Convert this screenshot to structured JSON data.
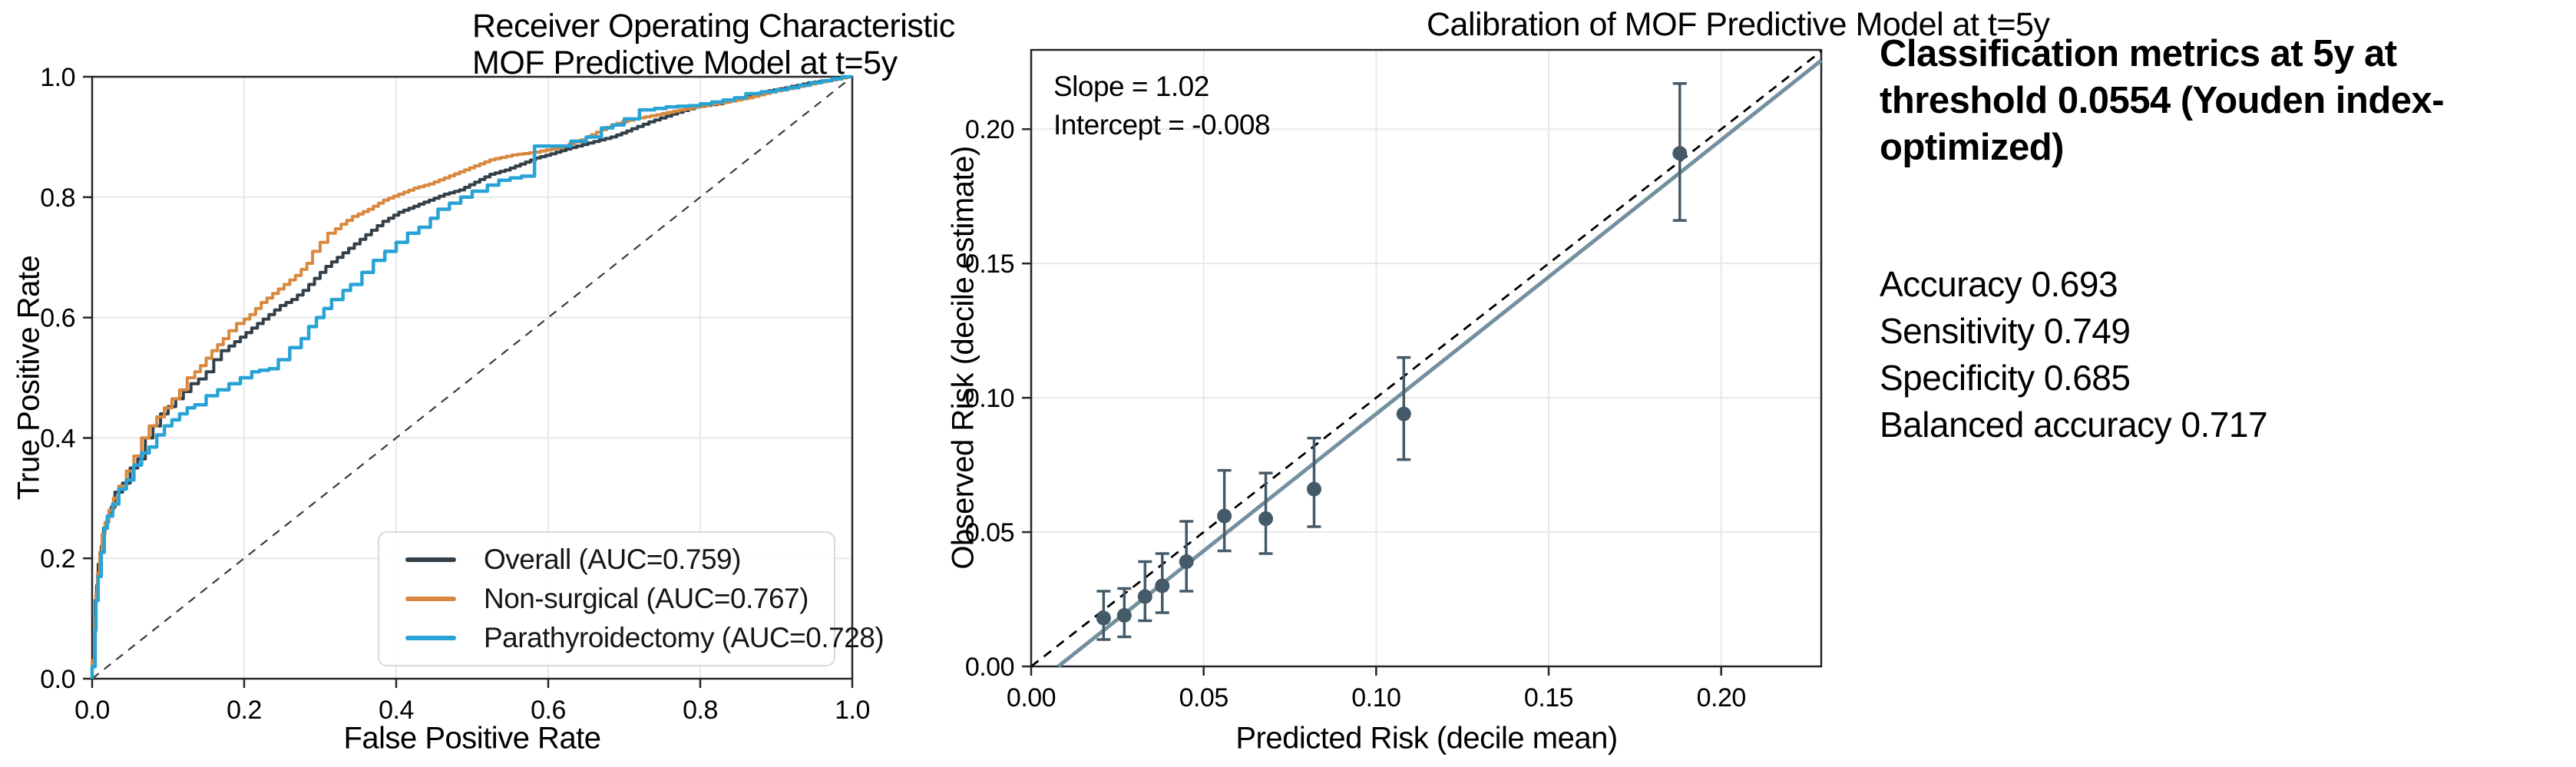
{
  "figure": {
    "background": "#ffffff"
  },
  "roc": {
    "title_line1": "Receiver Operating Characteristic",
    "title_line2": "MOF Predictive Model at t=5y",
    "xlabel": "False Positive Rate",
    "ylabel": "True Positive Rate"
  },
  "calibration": {
    "title": "Calibration of MOF Predictive Model at t=5y",
    "xlabel": "Predicted Risk (decile mean)",
    "ylabel": "Observed Risk (decile estimate)",
    "annotation": "Slope = 1.02\nIntercept = -0.008",
    "slope_label": "Slope = 1.02",
    "intercept_label": "Intercept = -0.008"
  },
  "metrics": {
    "title": "Classification metrics at 5y at\nthreshold 0.0554 (Youden index-\noptimized)",
    "lines": [
      "Accuracy 0.693",
      "Sensitivity 0.749",
      "Specificity 0.685",
      "Balanced accuracy 0.717"
    ]
  },
  "chart_data": [
    {
      "type": "line",
      "name": "roc",
      "title": "Receiver Operating Characteristic MOF Predictive Model at t=5y",
      "xlabel": "False Positive Rate",
      "ylabel": "True Positive Rate",
      "xlim": [
        0,
        1
      ],
      "ylim": [
        0,
        1
      ],
      "xticks": [
        "0.0",
        "0.2",
        "0.4",
        "0.6",
        "0.8",
        "1.0"
      ],
      "yticks": [
        "0.0",
        "0.2",
        "0.4",
        "0.6",
        "0.8",
        "1.0"
      ],
      "grid": true,
      "diagonal_reference": true,
      "legend_position": "lower right",
      "colors": {
        "grid": "#e8e8e8",
        "spine": "#262626",
        "diagonal": "#3c3c3c"
      },
      "series": [
        {
          "name": "overall",
          "label": "Overall (AUC=0.759)",
          "auc": 0.759,
          "color": "#334049",
          "width": 4,
          "step": 0.007,
          "points": [
            [
              0,
              0
            ],
            [
              0.003,
              0.02
            ],
            [
              0.004,
              0.09
            ],
            [
              0.006,
              0.13
            ],
            [
              0.008,
              0.155
            ],
            [
              0.012,
              0.19
            ],
            [
              0.015,
              0.22
            ],
            [
              0.02,
              0.25
            ],
            [
              0.025,
              0.27
            ],
            [
              0.03,
              0.285
            ],
            [
              0.04,
              0.31
            ],
            [
              0.05,
              0.325
            ],
            [
              0.06,
              0.35
            ],
            [
              0.07,
              0.365
            ],
            [
              0.08,
              0.4
            ],
            [
              0.09,
              0.42
            ],
            [
              0.1,
              0.44
            ],
            [
              0.11,
              0.452
            ],
            [
              0.12,
              0.465
            ],
            [
              0.13,
              0.477
            ],
            [
              0.14,
              0.49
            ],
            [
              0.15,
              0.498
            ],
            [
              0.16,
              0.51
            ],
            [
              0.17,
              0.53
            ],
            [
              0.18,
              0.545
            ],
            [
              0.195,
              0.56
            ],
            [
              0.21,
              0.575
            ],
            [
              0.225,
              0.59
            ],
            [
              0.24,
              0.605
            ],
            [
              0.255,
              0.62
            ],
            [
              0.27,
              0.63
            ],
            [
              0.285,
              0.645
            ],
            [
              0.3,
              0.665
            ],
            [
              0.315,
              0.685
            ],
            [
              0.33,
              0.7
            ],
            [
              0.345,
              0.715
            ],
            [
              0.36,
              0.73
            ],
            [
              0.375,
              0.745
            ],
            [
              0.39,
              0.76
            ],
            [
              0.41,
              0.775
            ],
            [
              0.43,
              0.785
            ],
            [
              0.45,
              0.795
            ],
            [
              0.47,
              0.805
            ],
            [
              0.49,
              0.812
            ],
            [
              0.51,
              0.825
            ],
            [
              0.53,
              0.838
            ],
            [
              0.55,
              0.845
            ],
            [
              0.57,
              0.855
            ],
            [
              0.59,
              0.865
            ],
            [
              0.61,
              0.872
            ],
            [
              0.63,
              0.88
            ],
            [
              0.66,
              0.89
            ],
            [
              0.69,
              0.9
            ],
            [
              0.71,
              0.91
            ],
            [
              0.74,
              0.925
            ],
            [
              0.77,
              0.938
            ],
            [
              0.8,
              0.95
            ],
            [
              0.83,
              0.955
            ],
            [
              0.86,
              0.965
            ],
            [
              0.89,
              0.975
            ],
            [
              0.92,
              0.982
            ],
            [
              0.95,
              0.99
            ],
            [
              0.98,
              0.995
            ],
            [
              1,
              1
            ]
          ]
        },
        {
          "name": "non_surgical",
          "label": "Non-surgical (AUC=0.767)",
          "auc": 0.767,
          "color": "#d8893f",
          "width": 4,
          "step": 0.007,
          "points": [
            [
              0,
              0
            ],
            [
              0.003,
              0.03
            ],
            [
              0.005,
              0.1
            ],
            [
              0.007,
              0.14
            ],
            [
              0.01,
              0.175
            ],
            [
              0.013,
              0.21
            ],
            [
              0.017,
              0.24
            ],
            [
              0.022,
              0.26
            ],
            [
              0.028,
              0.28
            ],
            [
              0.035,
              0.3
            ],
            [
              0.045,
              0.32
            ],
            [
              0.055,
              0.345
            ],
            [
              0.065,
              0.37
            ],
            [
              0.075,
              0.4
            ],
            [
              0.085,
              0.42
            ],
            [
              0.095,
              0.435
            ],
            [
              0.105,
              0.45
            ],
            [
              0.115,
              0.465
            ],
            [
              0.125,
              0.48
            ],
            [
              0.135,
              0.5
            ],
            [
              0.15,
              0.52
            ],
            [
              0.165,
              0.545
            ],
            [
              0.18,
              0.565
            ],
            [
              0.19,
              0.578
            ],
            [
              0.2,
              0.59
            ],
            [
              0.215,
              0.605
            ],
            [
              0.23,
              0.625
            ],
            [
              0.245,
              0.64
            ],
            [
              0.26,
              0.655
            ],
            [
              0.275,
              0.67
            ],
            [
              0.29,
              0.69
            ],
            [
              0.3,
              0.71
            ],
            [
              0.31,
              0.725
            ],
            [
              0.32,
              0.74
            ],
            [
              0.335,
              0.755
            ],
            [
              0.35,
              0.768
            ],
            [
              0.37,
              0.78
            ],
            [
              0.39,
              0.795
            ],
            [
              0.41,
              0.805
            ],
            [
              0.43,
              0.815
            ],
            [
              0.45,
              0.822
            ],
            [
              0.47,
              0.832
            ],
            [
              0.49,
              0.842
            ],
            [
              0.51,
              0.852
            ],
            [
              0.53,
              0.862
            ],
            [
              0.56,
              0.87
            ],
            [
              0.59,
              0.875
            ],
            [
              0.62,
              0.882
            ],
            [
              0.65,
              0.895
            ],
            [
              0.67,
              0.908
            ],
            [
              0.69,
              0.92
            ],
            [
              0.72,
              0.93
            ],
            [
              0.75,
              0.937
            ],
            [
              0.78,
              0.945
            ],
            [
              0.81,
              0.952
            ],
            [
              0.84,
              0.958
            ],
            [
              0.87,
              0.965
            ],
            [
              0.9,
              0.975
            ],
            [
              0.93,
              0.982
            ],
            [
              0.96,
              0.99
            ],
            [
              1,
              1
            ]
          ]
        },
        {
          "name": "parathyroidectomy",
          "label": "Parathyroidectomy (AUC=0.728)",
          "auc": 0.728,
          "color": "#29a3d6",
          "width": 4.5,
          "step": 0.014,
          "points": [
            [
              0,
              0
            ],
            [
              0.004,
              0.02
            ],
            [
              0.005,
              0.08
            ],
            [
              0.008,
              0.13
            ],
            [
              0.012,
              0.17
            ],
            [
              0.016,
              0.21
            ],
            [
              0.02,
              0.25
            ],
            [
              0.027,
              0.27
            ],
            [
              0.035,
              0.29
            ],
            [
              0.045,
              0.315
            ],
            [
              0.055,
              0.33
            ],
            [
              0.065,
              0.355
            ],
            [
              0.075,
              0.375
            ],
            [
              0.085,
              0.385
            ],
            [
              0.095,
              0.405
            ],
            [
              0.105,
              0.42
            ],
            [
              0.115,
              0.43
            ],
            [
              0.125,
              0.44
            ],
            [
              0.135,
              0.45
            ],
            [
              0.15,
              0.455
            ],
            [
              0.165,
              0.47
            ],
            [
              0.18,
              0.48
            ],
            [
              0.195,
              0.49
            ],
            [
              0.21,
              0.5
            ],
            [
              0.22,
              0.51
            ],
            [
              0.245,
              0.515
            ],
            [
              0.26,
              0.53
            ],
            [
              0.275,
              0.55
            ],
            [
              0.285,
              0.565
            ],
            [
              0.295,
              0.585
            ],
            [
              0.305,
              0.6
            ],
            [
              0.315,
              0.615
            ],
            [
              0.33,
              0.63
            ],
            [
              0.34,
              0.645
            ],
            [
              0.355,
              0.655
            ],
            [
              0.37,
              0.675
            ],
            [
              0.385,
              0.695
            ],
            [
              0.4,
              0.71
            ],
            [
              0.415,
              0.725
            ],
            [
              0.43,
              0.74
            ],
            [
              0.445,
              0.75
            ],
            [
              0.455,
              0.765
            ],
            [
              0.47,
              0.78
            ],
            [
              0.485,
              0.79
            ],
            [
              0.5,
              0.8
            ],
            [
              0.52,
              0.81
            ],
            [
              0.535,
              0.82
            ],
            [
              0.55,
              0.828
            ],
            [
              0.565,
              0.832
            ],
            [
              0.582,
              0.835
            ],
            [
              0.585,
              0.885
            ],
            [
              0.63,
              0.885
            ],
            [
              0.65,
              0.893
            ],
            [
              0.67,
              0.9
            ],
            [
              0.685,
              0.915
            ],
            [
              0.7,
              0.92
            ],
            [
              0.72,
              0.93
            ],
            [
              0.74,
              0.945
            ],
            [
              0.77,
              0.95
            ],
            [
              0.8,
              0.952
            ],
            [
              0.83,
              0.958
            ],
            [
              0.86,
              0.965
            ],
            [
              0.88,
              0.972
            ],
            [
              0.9,
              0.975
            ],
            [
              0.93,
              0.982
            ],
            [
              0.96,
              0.99
            ],
            [
              1,
              1
            ]
          ]
        }
      ]
    },
    {
      "type": "scatter",
      "name": "calibration",
      "title": "Calibration of MOF Predictive Model at t=5y",
      "xlabel": "Predicted Risk (decile mean)",
      "ylabel": "Observed Risk (decile estimate)",
      "xlim": [
        0,
        0.229
      ],
      "ylim": [
        0,
        0.2295
      ],
      "xticks": [
        "0.00",
        "0.05",
        "0.10",
        "0.15",
        "0.20"
      ],
      "yticks": [
        "0.00",
        "0.05",
        "0.10",
        "0.15",
        "0.20"
      ],
      "grid": true,
      "identity_reference": true,
      "fit": {
        "slope": 1.02,
        "intercept": -0.008
      },
      "colors": {
        "grid": "#e8e8e8",
        "spine": "#262626",
        "identity": "#000000",
        "fit": "#73909e",
        "point": "#455a68"
      },
      "points": [
        {
          "x": 0.021,
          "y": 0.018,
          "lo": 0.01,
          "hi": 0.028
        },
        {
          "x": 0.027,
          "y": 0.019,
          "lo": 0.011,
          "hi": 0.029
        },
        {
          "x": 0.033,
          "y": 0.026,
          "lo": 0.017,
          "hi": 0.039
        },
        {
          "x": 0.038,
          "y": 0.03,
          "lo": 0.02,
          "hi": 0.042
        },
        {
          "x": 0.045,
          "y": 0.039,
          "lo": 0.028,
          "hi": 0.054
        },
        {
          "x": 0.056,
          "y": 0.056,
          "lo": 0.043,
          "hi": 0.073
        },
        {
          "x": 0.068,
          "y": 0.055,
          "lo": 0.042,
          "hi": 0.072
        },
        {
          "x": 0.082,
          "y": 0.066,
          "lo": 0.052,
          "hi": 0.085
        },
        {
          "x": 0.108,
          "y": 0.094,
          "lo": 0.077,
          "hi": 0.115
        },
        {
          "x": 0.188,
          "y": 0.191,
          "lo": 0.166,
          "hi": 0.217
        }
      ]
    }
  ]
}
